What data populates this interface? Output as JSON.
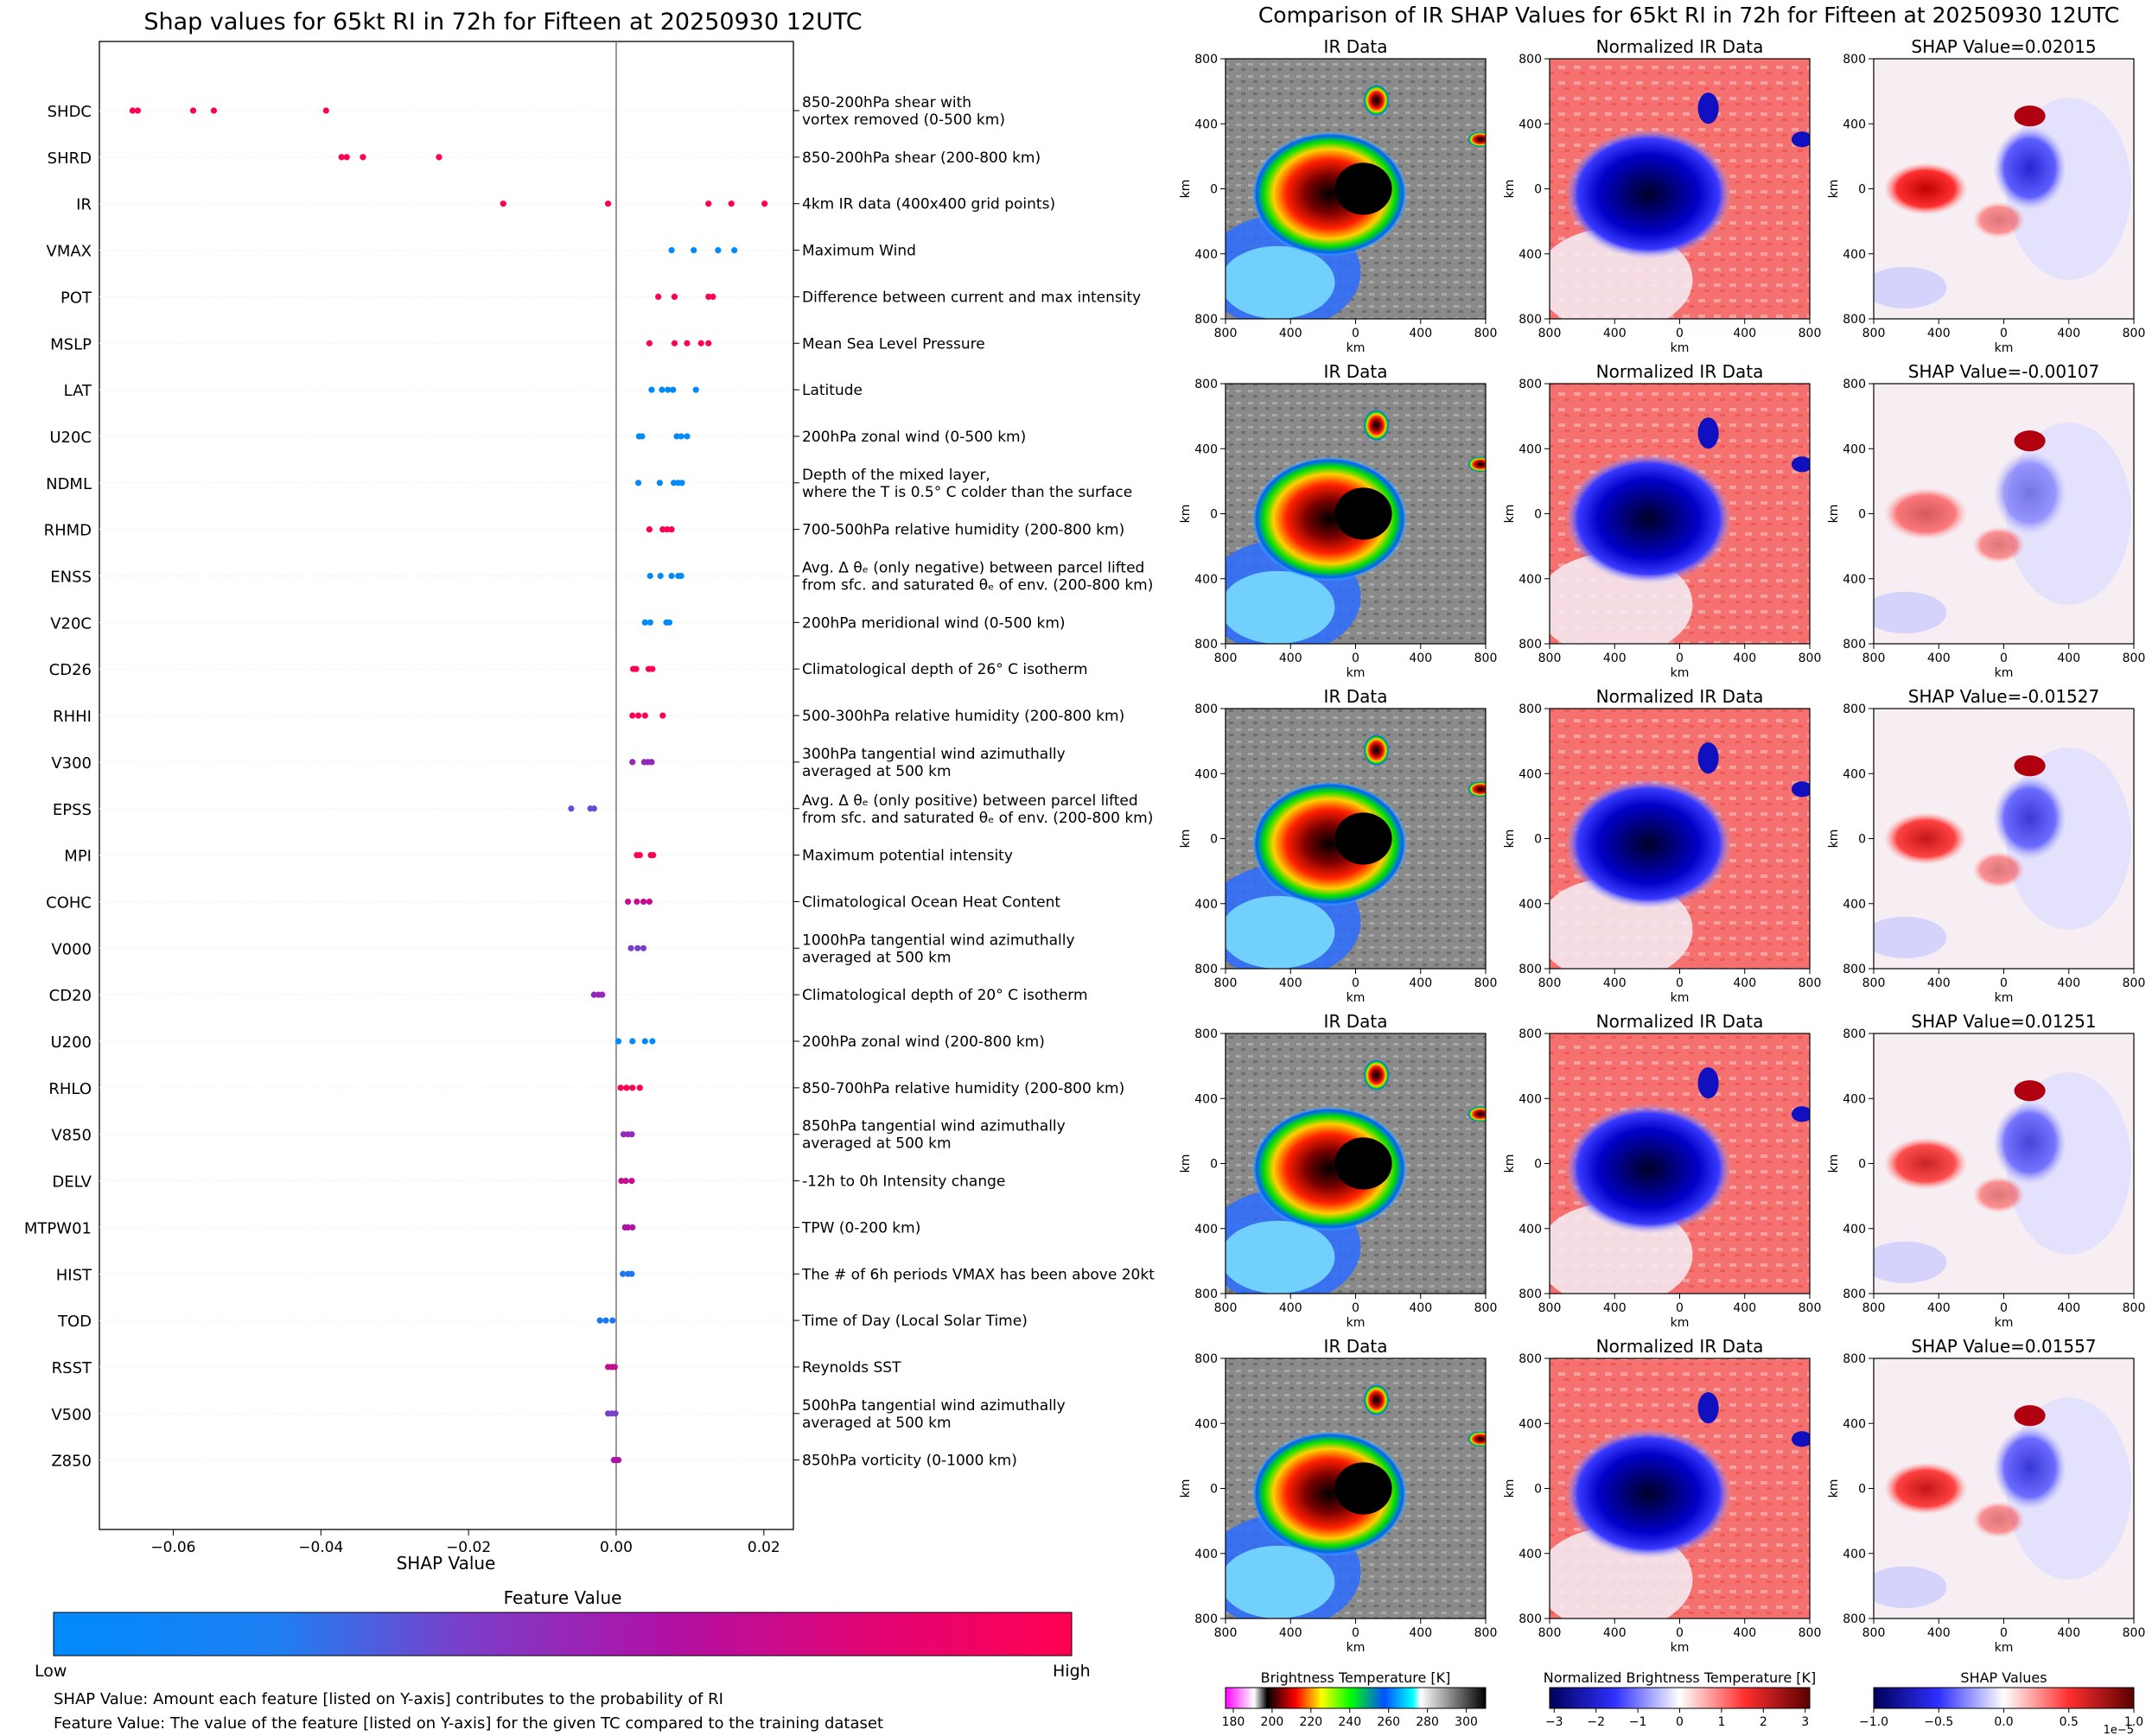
{
  "left_title": "Shap values for 65kt RI in 72h for Fifteen at 20250930 12UTC",
  "right_title": "Comparison of IR SHAP Values for 65kt RI in 72h for Fifteen at 20250930 12UTC",
  "colorbar": {
    "title": "Feature Value",
    "low": "Low",
    "high": "High",
    "colors": [
      "#008afb",
      "#7a3fca",
      "#b011a6",
      "#ff0051"
    ]
  },
  "footnotes": [
    "SHAP Value: Amount each feature [listed on Y-axis] contributes to the probability of RI",
    "Feature Value: The value of the feature [listed on Y-axis] for the given TC compared to the training dataset"
  ],
  "panel_labels": {
    "col_titles": [
      "IR Data",
      "Normalized IR Data"
    ],
    "shap_prefix": "SHAP Value=",
    "axis_unit": "km",
    "ticks": [
      "800",
      "400",
      "0",
      "400",
      "800"
    ]
  },
  "bottom_colorbars": [
    {
      "title": "Brightness Temperature [K]",
      "ticks": [
        "180",
        "200",
        "220",
        "240",
        "260",
        "280",
        "300"
      ]
    },
    {
      "title": "Normalized Brightness Temperature [K]",
      "ticks": [
        "−3",
        "−2",
        "−1",
        "0",
        "1",
        "2",
        "3"
      ]
    },
    {
      "title": "SHAP Values",
      "ticks": [
        "−1.0",
        "−0.5",
        "0.0",
        "0.5",
        "1.0"
      ],
      "exponent": "1e−5"
    }
  ],
  "chart_data": [
    {
      "type": "scatter",
      "title": "Shap values for 65kt RI in 72h for Fifteen at 20250930 12UTC",
      "xlabel": "SHAP Value",
      "xlim": [
        -0.07,
        0.024
      ],
      "xticks": [
        -0.06,
        -0.04,
        -0.02,
        0.0,
        0.02
      ],
      "xtick_labels": [
        "−0.06",
        "−0.04",
        "−0.02",
        "0.00",
        "0.02"
      ],
      "color_scale": "feature value (low = blue, high = pink)",
      "features": [
        {
          "name": "SHDC",
          "description": [
            "850-200hPa shear with",
            "vortex removed (0-500 km)"
          ],
          "points": [
            [
              -0.0655,
              1
            ],
            [
              -0.0648,
              1
            ],
            [
              -0.0573,
              1
            ],
            [
              -0.0545,
              1
            ],
            [
              -0.0393,
              1
            ]
          ]
        },
        {
          "name": "SHRD",
          "description": [
            "850-200hPa shear (200-800 km)"
          ],
          "points": [
            [
              -0.0372,
              1
            ],
            [
              -0.0365,
              1
            ],
            [
              -0.0343,
              1
            ],
            [
              -0.024,
              1
            ]
          ]
        },
        {
          "name": "IR",
          "description": [
            "4km IR data (400x400 grid points)"
          ],
          "points": [
            [
              -0.0153,
              1
            ],
            [
              -0.0011,
              1
            ],
            [
              0.0125,
              1
            ],
            [
              0.0156,
              1
            ],
            [
              0.0201,
              1
            ]
          ]
        },
        {
          "name": "VMAX",
          "description": [
            "Maximum Wind"
          ],
          "points": [
            [
              0.0075,
              0
            ],
            [
              0.0105,
              0
            ],
            [
              0.0138,
              0
            ],
            [
              0.016,
              0
            ]
          ]
        },
        {
          "name": "POT",
          "description": [
            "Difference between current and max intensity"
          ],
          "points": [
            [
              0.0057,
              1
            ],
            [
              0.0079,
              1
            ],
            [
              0.0125,
              1
            ],
            [
              0.0131,
              1
            ]
          ]
        },
        {
          "name": "MSLP",
          "description": [
            "Mean Sea Level Pressure"
          ],
          "points": [
            [
              0.0045,
              1
            ],
            [
              0.0079,
              1
            ],
            [
              0.0096,
              1
            ],
            [
              0.0115,
              1
            ],
            [
              0.0125,
              1
            ]
          ]
        },
        {
          "name": "LAT",
          "description": [
            "Latitude"
          ],
          "points": [
            [
              0.0048,
              0
            ],
            [
              0.0062,
              0
            ],
            [
              0.007,
              0
            ],
            [
              0.0077,
              0
            ],
            [
              0.0108,
              0
            ]
          ]
        },
        {
          "name": "U20C",
          "description": [
            "200hPa zonal wind (0-500 km)"
          ],
          "points": [
            [
              0.0031,
              0
            ],
            [
              0.0035,
              0
            ],
            [
              0.0082,
              0
            ],
            [
              0.0088,
              0
            ],
            [
              0.0096,
              0
            ]
          ]
        },
        {
          "name": "NDML",
          "description": [
            "Depth of the mixed layer,",
            "where the T is 0.5° C colder than the surface"
          ],
          "points": [
            [
              0.003,
              0
            ],
            [
              0.0059,
              0
            ],
            [
              0.0078,
              0
            ],
            [
              0.0084,
              0
            ],
            [
              0.0089,
              0
            ]
          ]
        },
        {
          "name": "RHMD",
          "description": [
            "700-500hPa relative humidity (200-800 km)"
          ],
          "points": [
            [
              0.0045,
              1
            ],
            [
              0.0063,
              1
            ],
            [
              0.0069,
              1
            ],
            [
              0.0075,
              1
            ]
          ]
        },
        {
          "name": "ENSS",
          "description": [
            "Avg. Δ θₑ (only negative) between parcel lifted",
            "from sfc. and saturated θₑ of env. (200-800 km)"
          ],
          "points": [
            [
              0.0046,
              0
            ],
            [
              0.006,
              0
            ],
            [
              0.0075,
              0
            ],
            [
              0.0084,
              0
            ],
            [
              0.0088,
              0
            ]
          ]
        },
        {
          "name": "V20C",
          "description": [
            "200hPa meridional wind (0-500 km)"
          ],
          "points": [
            [
              0.0039,
              0
            ],
            [
              0.0046,
              0
            ],
            [
              0.0068,
              0
            ],
            [
              0.0072,
              0
            ]
          ]
        },
        {
          "name": "CD26",
          "description": [
            "Climatological depth of 26° C isotherm"
          ],
          "points": [
            [
              0.0023,
              1
            ],
            [
              0.0027,
              1
            ],
            [
              0.0044,
              1
            ],
            [
              0.0049,
              1
            ]
          ]
        },
        {
          "name": "RHHI",
          "description": [
            "500-300hPa relative humidity (200-800 km)"
          ],
          "points": [
            [
              0.0022,
              1
            ],
            [
              0.003,
              1
            ],
            [
              0.0039,
              1
            ],
            [
              0.0063,
              1
            ]
          ]
        },
        {
          "name": "V300",
          "description": [
            "300hPa tangential wind azimuthally",
            "averaged at 500 km"
          ],
          "points": [
            [
              0.0022,
              0.5
            ],
            [
              0.0038,
              0.5
            ],
            [
              0.0043,
              0.5
            ],
            [
              0.0048,
              0.5
            ]
          ]
        },
        {
          "name": "EPSS",
          "description": [
            "Avg. Δ θₑ (only positive) between parcel lifted",
            "from sfc. and saturated θₑ of env. (200-800 km)"
          ],
          "points": [
            [
              -0.0061,
              0.3
            ],
            [
              -0.0035,
              0.3
            ],
            [
              -0.003,
              0.3
            ]
          ]
        },
        {
          "name": "MPI",
          "description": [
            "Maximum potential intensity"
          ],
          "points": [
            [
              0.0028,
              1
            ],
            [
              0.0032,
              1
            ],
            [
              0.0047,
              1
            ],
            [
              0.005,
              1
            ]
          ]
        },
        {
          "name": "COHC",
          "description": [
            "Climatological Ocean Heat Content"
          ],
          "points": [
            [
              0.0016,
              0.7
            ],
            [
              0.0028,
              0.7
            ],
            [
              0.0037,
              0.7
            ],
            [
              0.0045,
              0.7
            ]
          ]
        },
        {
          "name": "V000",
          "description": [
            "1000hPa tangential wind azimuthally",
            "averaged at 500 km"
          ],
          "points": [
            [
              0.002,
              0.4
            ],
            [
              0.0029,
              0.4
            ],
            [
              0.0037,
              0.4
            ]
          ]
        },
        {
          "name": "CD20",
          "description": [
            "Climatological depth of 20° C isotherm"
          ],
          "points": [
            [
              -0.003,
              0.5
            ],
            [
              -0.0024,
              0.5
            ],
            [
              -0.0019,
              0.5
            ]
          ]
        },
        {
          "name": "U200",
          "description": [
            "200hPa zonal wind (200-800 km)"
          ],
          "points": [
            [
              0.0003,
              0
            ],
            [
              0.0022,
              0
            ],
            [
              0.0039,
              0
            ],
            [
              0.0049,
              0
            ]
          ]
        },
        {
          "name": "RHLO",
          "description": [
            "850-700hPa relative humidity (200-800 km)"
          ],
          "points": [
            [
              0.0006,
              1
            ],
            [
              0.0014,
              1
            ],
            [
              0.0022,
              1
            ],
            [
              0.0032,
              1
            ]
          ]
        },
        {
          "name": "V850",
          "description": [
            "850hPa tangential wind azimuthally",
            "averaged at 500 km"
          ],
          "points": [
            [
              0.001,
              0.5
            ],
            [
              0.0016,
              0.5
            ],
            [
              0.0021,
              0.5
            ]
          ]
        },
        {
          "name": "DELV",
          "description": [
            "-12h to 0h Intensity change"
          ],
          "points": [
            [
              0.0007,
              0.7
            ],
            [
              0.0013,
              0.7
            ],
            [
              0.0021,
              0.7
            ]
          ]
        },
        {
          "name": "MTPW01",
          "description": [
            "TPW (0-200 km)"
          ],
          "points": [
            [
              0.0012,
              0.6
            ],
            [
              0.0016,
              0.6
            ],
            [
              0.0022,
              0.6
            ]
          ]
        },
        {
          "name": "HIST",
          "description": [
            "The # of 6h periods VMAX has been above 20kt"
          ],
          "points": [
            [
              0.0009,
              0.1
            ],
            [
              0.0016,
              0.1
            ],
            [
              0.0021,
              0.1
            ]
          ]
        },
        {
          "name": "TOD",
          "description": [
            "Time of Day (Local Solar Time)"
          ],
          "points": [
            [
              -0.0022,
              0.1
            ],
            [
              -0.0014,
              0.1
            ],
            [
              -0.0005,
              0.1
            ]
          ]
        },
        {
          "name": "RSST",
          "description": [
            "Reynolds SST"
          ],
          "points": [
            [
              -0.0011,
              0.7
            ],
            [
              -0.0006,
              0.7
            ],
            [
              -0.0002,
              0.7
            ]
          ]
        },
        {
          "name": "V500",
          "description": [
            "500hPa tangential wind azimuthally",
            "averaged at 500 km"
          ],
          "points": [
            [
              -0.0011,
              0.4
            ],
            [
              -0.0006,
              0.4
            ],
            [
              -0.0001,
              0.4
            ]
          ]
        },
        {
          "name": "Z850",
          "description": [
            "850hPa vorticity (0-1000 km)"
          ],
          "points": [
            [
              -0.0003,
              0.6
            ],
            [
              0.0,
              0.6
            ],
            [
              0.0003,
              0.6
            ]
          ]
        }
      ]
    },
    {
      "type": "heatmap",
      "title": "Comparison of IR SHAP Values for 65kt RI in 72h for Fifteen at 20250930 12UTC",
      "xlabel": "km",
      "ylabel": "km",
      "xlim": [
        -800,
        800
      ],
      "ylim": [
        -800,
        800
      ],
      "rows": [
        {
          "shap_value": "0.02015"
        },
        {
          "shap_value": "-0.00107"
        },
        {
          "shap_value": "-0.01527"
        },
        {
          "shap_value": "0.01251"
        },
        {
          "shap_value": "0.01557"
        }
      ]
    }
  ]
}
